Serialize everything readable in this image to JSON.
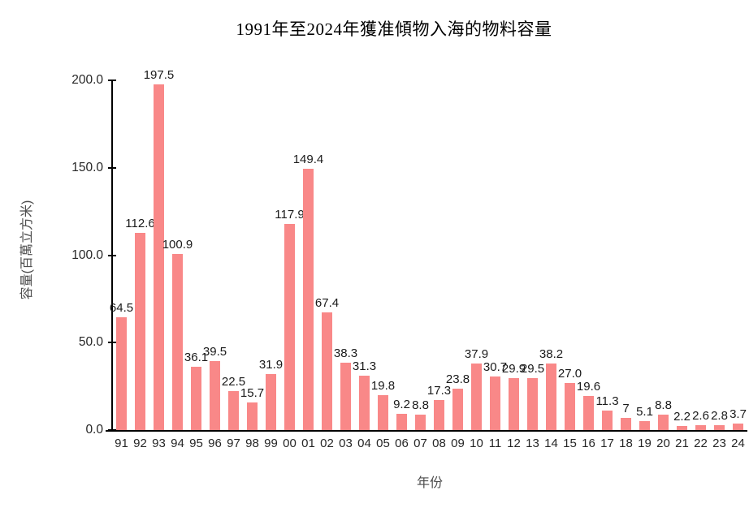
{
  "chart_data": {
    "type": "bar",
    "title": "1991年至2024年獲准傾物入海的物料容量",
    "xlabel": "年份",
    "ylabel": "容量(百萬立方米)",
    "categories": [
      "91",
      "92",
      "93",
      "94",
      "95",
      "96",
      "97",
      "98",
      "99",
      "00",
      "01",
      "02",
      "03",
      "04",
      "05",
      "06",
      "07",
      "08",
      "09",
      "10",
      "11",
      "12",
      "13",
      "14",
      "15",
      "16",
      "17",
      "18",
      "19",
      "20",
      "21",
      "22",
      "23",
      "24"
    ],
    "values": [
      64.5,
      112.6,
      197.5,
      100.9,
      36.1,
      39.5,
      22.5,
      15.7,
      31.9,
      117.9,
      149.4,
      67.4,
      38.3,
      31.3,
      19.8,
      9.2,
      8.8,
      17.3,
      23.8,
      37.9,
      30.7,
      29.9,
      29.5,
      38.2,
      27.0,
      19.6,
      11.3,
      7,
      5.1,
      8.8,
      2.2,
      2.6,
      2.8,
      3.7
    ],
    "value_labels": [
      "64.5",
      "112.6",
      "197.5",
      "100.9",
      "36.1",
      "39.5",
      "22.5",
      "15.7",
      "31.9",
      "117.9",
      "149.4",
      "67.4",
      "38.3",
      "31.3",
      "19.8",
      "9.2",
      "8.8",
      "17.3",
      "23.8",
      "37.9",
      "30.7",
      "29.9",
      "29.5",
      "38.2",
      "27.0",
      "19.6",
      "11.3",
      "7",
      "5.1",
      "8.8",
      "2.2",
      "2.6",
      "2.8",
      "3.7"
    ],
    "ytick_labels": [
      "0.0",
      "50.0",
      "100.0",
      "150.0",
      "200.0"
    ],
    "ylim": [
      0,
      200
    ],
    "grid": false,
    "legend_position": "none",
    "bar_color": "#F98888",
    "axis_color": "#000000"
  }
}
